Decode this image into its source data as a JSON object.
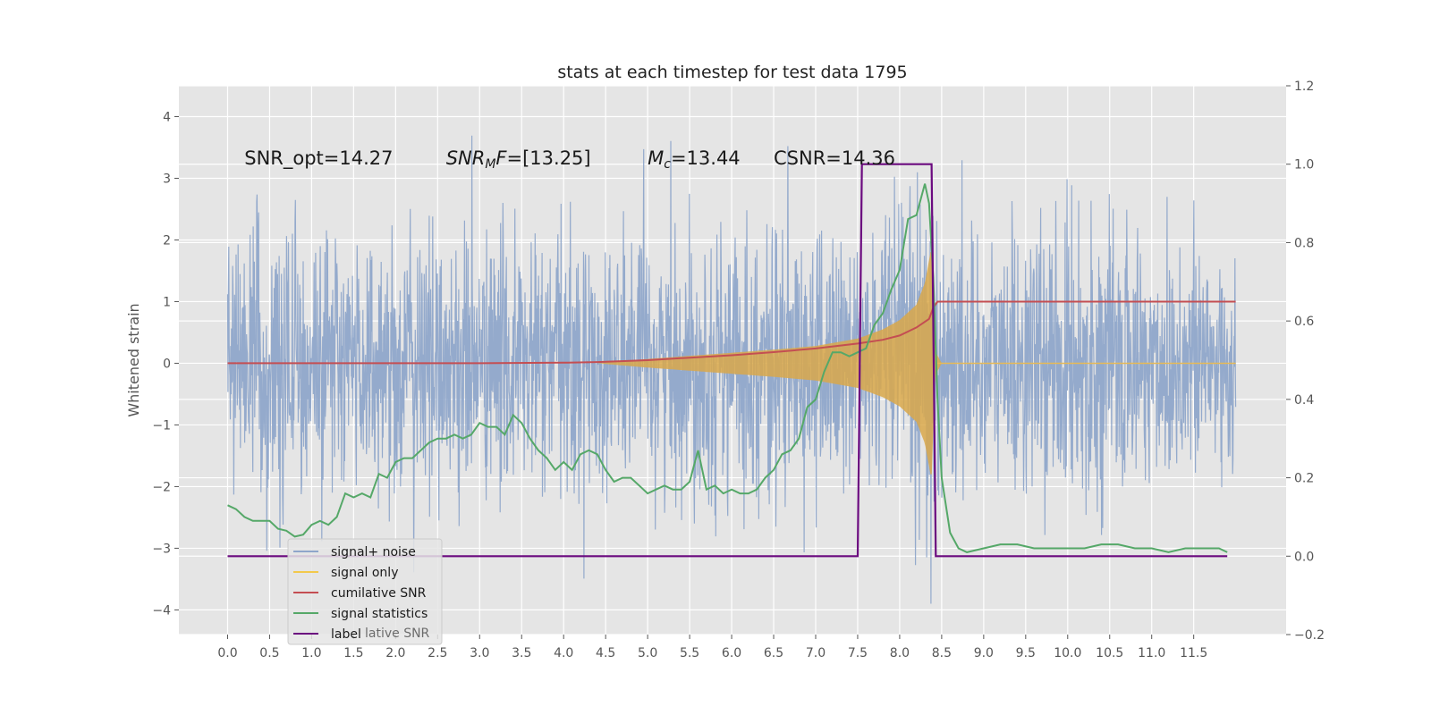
{
  "chart_data": {
    "type": "line",
    "title": "stats at each timestep for test data 1795",
    "ylabel": "Whitened strain",
    "xlim": [
      -0.58,
      12.6
    ],
    "ylim": [
      -4.4,
      4.5
    ],
    "y2lim": [
      -0.2,
      1.2
    ],
    "grid": true,
    "legend_placement": "lower-left",
    "x_ticks": [
      "0.0",
      "0.5",
      "1.0",
      "1.5",
      "2.0",
      "2.5",
      "3.0",
      "3.5",
      "4.0",
      "4.5",
      "5.0",
      "5.5",
      "6.0",
      "6.5",
      "7.0",
      "7.5",
      "8.0",
      "8.5",
      "9.0",
      "9.5",
      "10.0",
      "10.5",
      "11.0",
      "11.5"
    ],
    "y_ticks": [
      "4",
      "3",
      "2",
      "1",
      "0",
      "−1",
      "−2",
      "−3",
      "−4"
    ],
    "y2_ticks": [
      "1.2",
      "1.0",
      "0.8",
      "0.6",
      "0.4",
      "0.2",
      "0.0",
      "−0.2"
    ],
    "annotations": [
      {
        "text": "SNR_opt=14.27",
        "x": 0.2
      },
      {
        "text": "SNR_MF=[13.25]",
        "x": 2.6
      },
      {
        "text": "M_c=13.44",
        "x": 5.0
      },
      {
        "text": "CSNR=14.36",
        "x": 6.5
      }
    ],
    "colors": {
      "background": "#e5e5e5",
      "grid": "#ffffff",
      "signal_noise": "#8fa6ca",
      "signal_only": "#d9a84a",
      "cumulative_snr": "#c44e52",
      "signal_statistics": "#55a868",
      "label": "#6b0a7f"
    },
    "legend": [
      {
        "name": "signal+ noise",
        "color": "#8fa6ca"
      },
      {
        "name": "signal only",
        "color": "#f2c94c"
      },
      {
        "name": "cumilative SNR",
        "color": "#c44e52"
      },
      {
        "name": "signal statistics",
        "color": "#55a868"
      },
      {
        "name": "label",
        "color": "#6b0a7f"
      }
    ],
    "legend_hidden_text": "lative SNR",
    "series": [
      {
        "name": "signal+ noise",
        "axis": "left",
        "x_range": [
          0.0,
          12.0
        ],
        "envelope_std": 1.0,
        "peak_positive": 4.1,
        "peak_negative": -3.9
      },
      {
        "name": "signal only",
        "axis": "left",
        "amplitude": {
          "x": [
            4.4,
            5.0,
            5.5,
            6.0,
            6.5,
            7.0,
            7.5,
            7.8,
            8.0,
            8.2,
            8.3,
            8.38,
            8.42,
            8.5,
            12.0
          ],
          "y": [
            0.0,
            0.07,
            0.12,
            0.17,
            0.22,
            0.28,
            0.4,
            0.55,
            0.7,
            0.95,
            1.3,
            1.9,
            0.2,
            0.0,
            0.0
          ]
        }
      },
      {
        "name": "cumilative SNR",
        "axis": "left",
        "x": [
          0.0,
          1.0,
          2.0,
          3.0,
          4.0,
          4.4,
          5.0,
          5.5,
          6.0,
          6.5,
          7.0,
          7.5,
          7.8,
          8.0,
          8.2,
          8.35,
          8.4,
          8.45,
          12.0
        ],
        "y": [
          0.0,
          0.0,
          0.0,
          0.0,
          0.01,
          0.02,
          0.05,
          0.09,
          0.13,
          0.18,
          0.24,
          0.32,
          0.38,
          0.45,
          0.58,
          0.72,
          0.9,
          1.0,
          1.0
        ]
      },
      {
        "name": "signal statistics",
        "axis": "right",
        "x": [
          0.0,
          0.1,
          0.2,
          0.3,
          0.4,
          0.5,
          0.6,
          0.7,
          0.8,
          0.9,
          1.0,
          1.1,
          1.2,
          1.3,
          1.4,
          1.5,
          1.6,
          1.7,
          1.8,
          1.9,
          2.0,
          2.1,
          2.2,
          2.3,
          2.4,
          2.5,
          2.6,
          2.7,
          2.8,
          2.9,
          3.0,
          3.1,
          3.2,
          3.3,
          3.4,
          3.5,
          3.6,
          3.7,
          3.8,
          3.9,
          4.0,
          4.1,
          4.2,
          4.3,
          4.4,
          4.5,
          4.6,
          4.7,
          4.8,
          4.9,
          5.0,
          5.1,
          5.2,
          5.3,
          5.4,
          5.5,
          5.6,
          5.7,
          5.8,
          5.9,
          6.0,
          6.1,
          6.2,
          6.3,
          6.4,
          6.5,
          6.6,
          6.7,
          6.8,
          6.9,
          7.0,
          7.1,
          7.2,
          7.3,
          7.4,
          7.5,
          7.6,
          7.7,
          7.8,
          7.9,
          8.0,
          8.1,
          8.2,
          8.3,
          8.35,
          8.4,
          8.45,
          8.5,
          8.6,
          8.7,
          8.8,
          9.0,
          9.2,
          9.4,
          9.6,
          9.8,
          10.0,
          10.2,
          10.4,
          10.6,
          10.8,
          11.0,
          11.2,
          11.4,
          11.6,
          11.8,
          11.9
        ],
        "y": [
          0.13,
          0.12,
          0.1,
          0.09,
          0.09,
          0.09,
          0.07,
          0.065,
          0.05,
          0.055,
          0.08,
          0.09,
          0.08,
          0.1,
          0.16,
          0.15,
          0.16,
          0.15,
          0.21,
          0.2,
          0.24,
          0.25,
          0.25,
          0.27,
          0.29,
          0.3,
          0.3,
          0.31,
          0.3,
          0.31,
          0.34,
          0.33,
          0.33,
          0.31,
          0.36,
          0.34,
          0.3,
          0.27,
          0.25,
          0.22,
          0.24,
          0.22,
          0.26,
          0.27,
          0.26,
          0.22,
          0.19,
          0.2,
          0.2,
          0.18,
          0.16,
          0.17,
          0.18,
          0.17,
          0.17,
          0.19,
          0.27,
          0.17,
          0.18,
          0.16,
          0.17,
          0.16,
          0.16,
          0.17,
          0.2,
          0.22,
          0.26,
          0.27,
          0.3,
          0.38,
          0.4,
          0.47,
          0.52,
          0.52,
          0.51,
          0.52,
          0.53,
          0.59,
          0.62,
          0.68,
          0.73,
          0.86,
          0.87,
          0.95,
          0.9,
          0.71,
          0.4,
          0.2,
          0.06,
          0.02,
          0.01,
          0.02,
          0.03,
          0.03,
          0.02,
          0.02,
          0.02,
          0.02,
          0.03,
          0.03,
          0.02,
          0.02,
          0.01,
          0.02,
          0.02,
          0.02,
          0.01
        ]
      },
      {
        "name": "label",
        "axis": "right",
        "x": [
          0.0,
          7.5,
          7.55,
          8.38,
          8.43,
          11.9
        ],
        "y": [
          0.0,
          0.0,
          1.0,
          1.0,
          0.0,
          0.0
        ]
      }
    ]
  }
}
